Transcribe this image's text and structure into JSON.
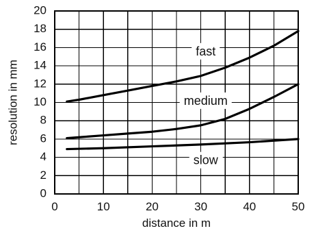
{
  "chart_data": {
    "type": "line",
    "xlabel": "distance in m",
    "ylabel": "resolution in mm",
    "xlim": [
      0,
      50
    ],
    "ylim": [
      0,
      20
    ],
    "xticks": [
      0,
      10,
      20,
      30,
      40,
      50
    ],
    "yticks": [
      0,
      2,
      4,
      6,
      8,
      10,
      12,
      14,
      16,
      18,
      20
    ],
    "grid": true,
    "series": [
      {
        "name": "fast",
        "x": [
          2.5,
          5,
          10,
          15,
          20,
          25,
          30,
          35,
          40,
          45,
          50
        ],
        "values": [
          10.1,
          10.3,
          10.8,
          11.3,
          11.8,
          12.3,
          12.9,
          13.8,
          14.9,
          16.2,
          17.8
        ]
      },
      {
        "name": "medium",
        "x": [
          2.5,
          5,
          10,
          15,
          20,
          25,
          30,
          35,
          40,
          45,
          50
        ],
        "values": [
          6.1,
          6.2,
          6.4,
          6.6,
          6.8,
          7.1,
          7.5,
          8.2,
          9.3,
          10.6,
          12.0
        ]
      },
      {
        "name": "slow",
        "x": [
          2.5,
          10,
          20,
          30,
          40,
          50
        ],
        "values": [
          4.9,
          5.0,
          5.2,
          5.4,
          5.65,
          6.0
        ]
      }
    ],
    "annotations": [
      {
        "text": "fast",
        "series": "fast",
        "x": 31,
        "y": 15.5
      },
      {
        "text": "medium",
        "series": "medium",
        "x": 31,
        "y": 10.1
      },
      {
        "text": "slow",
        "series": "slow",
        "x": 31,
        "y": 3.6
      }
    ]
  }
}
